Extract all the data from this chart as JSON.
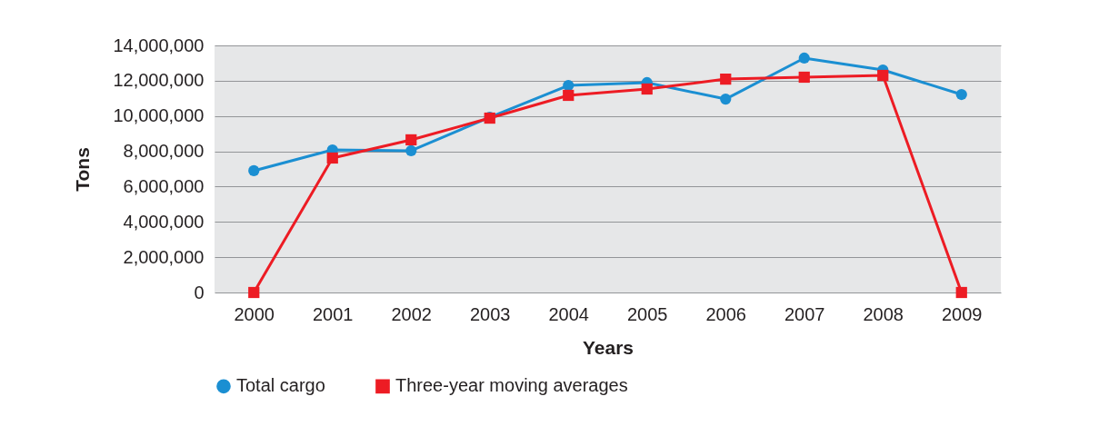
{
  "chart_data": {
    "type": "line",
    "xlabel": "Years",
    "ylabel": "Tons",
    "categories": [
      "2000",
      "2001",
      "2002",
      "2003",
      "2004",
      "2005",
      "2006",
      "2007",
      "2008",
      "2009"
    ],
    "series": [
      {
        "name": "Total cargo",
        "color": "#1b8fd2",
        "marker": "circle",
        "values": [
          6900000,
          8080000,
          8030000,
          9930000,
          11730000,
          11890000,
          10960000,
          13280000,
          12610000,
          11220000
        ]
      },
      {
        "name": "Three-year moving averages",
        "color": "#ed1c24",
        "marker": "square",
        "values": [
          0,
          7620000,
          8650000,
          9880000,
          11170000,
          11530000,
          12090000,
          12200000,
          12300000,
          0
        ]
      }
    ],
    "ylim": [
      0,
      14000000
    ],
    "yticks": [
      0,
      {
        "value": 2000000,
        "label": "2,000,000"
      },
      {
        "value": 4000000,
        "label": "4,000,000"
      },
      {
        "value": 6000000,
        "label": "6,000,000"
      },
      {
        "value": 8000000,
        "label": "8,000,000"
      },
      {
        "value": 10000000,
        "label": "10,000,000"
      },
      {
        "value": 12000000,
        "label": "12,000,000"
      },
      {
        "value": 14000000,
        "label": "14,000,000"
      }
    ],
    "grid": "y",
    "legend": "bottom",
    "line_style": "solid"
  }
}
